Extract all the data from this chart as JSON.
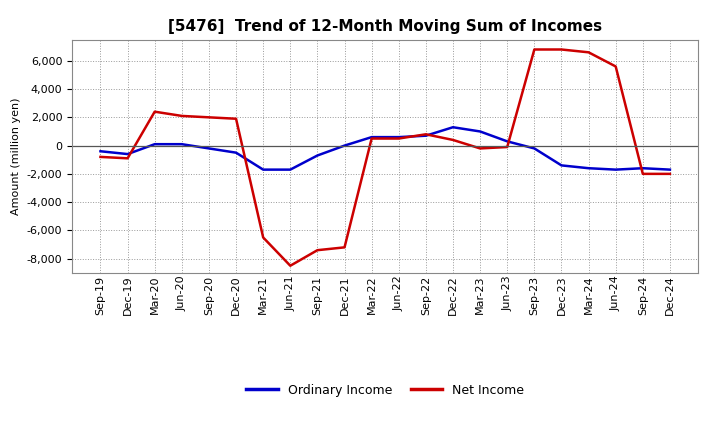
{
  "title": "[5476]  Trend of 12-Month Moving Sum of Incomes",
  "ylabel": "Amount (million yen)",
  "ylim": [
    -9000,
    7500
  ],
  "yticks": [
    -8000,
    -6000,
    -4000,
    -2000,
    0,
    2000,
    4000,
    6000
  ],
  "background_color": "#ffffff",
  "plot_bg_color": "#ffffff",
  "grid_color": "#999999",
  "x_labels": [
    "Sep-19",
    "Dec-19",
    "Mar-20",
    "Jun-20",
    "Sep-20",
    "Dec-20",
    "Mar-21",
    "Jun-21",
    "Sep-21",
    "Dec-21",
    "Mar-22",
    "Jun-22",
    "Sep-22",
    "Dec-22",
    "Mar-23",
    "Jun-23",
    "Sep-23",
    "Dec-23",
    "Mar-24",
    "Jun-24",
    "Sep-24",
    "Dec-24"
  ],
  "ordinary_income": [
    -400,
    -600,
    100,
    100,
    -200,
    -500,
    -1700,
    -1700,
    -700,
    0,
    600,
    600,
    700,
    1300,
    1000,
    300,
    -200,
    -1400,
    -1600,
    -1700,
    -1600,
    -1700
  ],
  "net_income": [
    -800,
    -900,
    2400,
    2100,
    2000,
    1900,
    -6500,
    -8500,
    -7400,
    -7200,
    500,
    500,
    800,
    400,
    -200,
    -100,
    6800,
    6800,
    6600,
    5600,
    -2000,
    -2000
  ],
  "ordinary_income_color": "#0000cc",
  "net_income_color": "#cc0000",
  "line_width": 1.8,
  "legend_ordinary": "Ordinary Income",
  "legend_net": "Net Income",
  "title_fontsize": 11,
  "axis_fontsize": 8,
  "ylabel_fontsize": 8
}
